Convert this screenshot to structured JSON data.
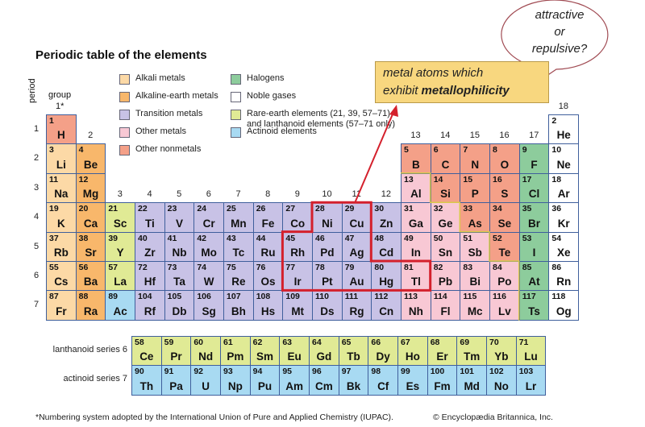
{
  "title": "Periodic table of the elements",
  "axis_labels": {
    "period": "period",
    "group": "group",
    "group1": "1*"
  },
  "colors": {
    "alkali": "#fcd9a6",
    "alkaline": "#f8b76b",
    "transition": "#c8c2e6",
    "other_metal": "#f8c8d4",
    "nonmetal": "#f4a088",
    "halogen": "#8dcc9c",
    "noble": "#ffffff",
    "rare_earth": "#e0ea95",
    "actinoid": "#a8daf2",
    "highlight": "#d4202c",
    "note_box": "#f8d77f"
  },
  "legend": [
    {
      "key": "alkali",
      "label": "Alkali metals"
    },
    {
      "key": "alkaline",
      "label": "Alkaline-earth metals"
    },
    {
      "key": "transition",
      "label": "Transition metals"
    },
    {
      "key": "other_metal",
      "label": "Other metals"
    },
    {
      "key": "nonmetal",
      "label": "Other nonmetals"
    },
    {
      "key": "halogen",
      "label": "Halogens"
    },
    {
      "key": "noble",
      "label": "Noble gases"
    },
    {
      "key": "rare_earth",
      "label": "Rare-earth elements (21, 39, 57–71)",
      "label2": "and lanthanoid elements (57–71 only)"
    },
    {
      "key": "actinoid",
      "label": "Actinoid elements"
    }
  ],
  "groups": [
    "2",
    "3",
    "4",
    "5",
    "6",
    "7",
    "8",
    "9",
    "10",
    "11",
    "12",
    "13",
    "14",
    "15",
    "16",
    "17",
    "18"
  ],
  "periods": [
    "1",
    "2",
    "3",
    "4",
    "5",
    "6",
    "7"
  ],
  "elements": [
    [
      1,
      "H",
      "nonmetal",
      1,
      1
    ],
    [
      2,
      "He",
      "noble",
      1,
      18
    ],
    [
      3,
      "Li",
      "alkali",
      2,
      1
    ],
    [
      4,
      "Be",
      "alkaline",
      2,
      2
    ],
    [
      5,
      "B",
      "nonmetal",
      2,
      13
    ],
    [
      6,
      "C",
      "nonmetal",
      2,
      14
    ],
    [
      7,
      "N",
      "nonmetal",
      2,
      15
    ],
    [
      8,
      "O",
      "nonmetal",
      2,
      16
    ],
    [
      9,
      "F",
      "halogen",
      2,
      17
    ],
    [
      10,
      "Ne",
      "noble",
      2,
      18
    ],
    [
      11,
      "Na",
      "alkali",
      3,
      1
    ],
    [
      12,
      "Mg",
      "alkaline",
      3,
      2
    ],
    [
      13,
      "Al",
      "other_metal",
      3,
      13
    ],
    [
      14,
      "Si",
      "nonmetal",
      3,
      14
    ],
    [
      15,
      "P",
      "nonmetal",
      3,
      15
    ],
    [
      16,
      "S",
      "nonmetal",
      3,
      16
    ],
    [
      17,
      "Cl",
      "halogen",
      3,
      17
    ],
    [
      18,
      "Ar",
      "noble",
      3,
      18
    ],
    [
      19,
      "K",
      "alkali",
      4,
      1
    ],
    [
      20,
      "Ca",
      "alkaline",
      4,
      2
    ],
    [
      21,
      "Sc",
      "rare_earth",
      4,
      3
    ],
    [
      22,
      "Ti",
      "transition",
      4,
      4
    ],
    [
      23,
      "V",
      "transition",
      4,
      5
    ],
    [
      24,
      "Cr",
      "transition",
      4,
      6
    ],
    [
      25,
      "Mn",
      "transition",
      4,
      7
    ],
    [
      26,
      "Fe",
      "transition",
      4,
      8
    ],
    [
      27,
      "Co",
      "transition",
      4,
      9
    ],
    [
      28,
      "Ni",
      "transition",
      4,
      10
    ],
    [
      29,
      "Cu",
      "transition",
      4,
      11
    ],
    [
      30,
      "Zn",
      "transition",
      4,
      12
    ],
    [
      31,
      "Ga",
      "other_metal",
      4,
      13
    ],
    [
      32,
      "Ge",
      "other_metal",
      4,
      14
    ],
    [
      33,
      "As",
      "nonmetal",
      4,
      15
    ],
    [
      34,
      "Se",
      "nonmetal",
      4,
      16
    ],
    [
      35,
      "Br",
      "halogen",
      4,
      17
    ],
    [
      36,
      "Kr",
      "noble",
      4,
      18
    ],
    [
      37,
      "Rb",
      "alkali",
      5,
      1
    ],
    [
      38,
      "Sr",
      "alkaline",
      5,
      2
    ],
    [
      39,
      "Y",
      "rare_earth",
      5,
      3
    ],
    [
      40,
      "Zr",
      "transition",
      5,
      4
    ],
    [
      41,
      "Nb",
      "transition",
      5,
      5
    ],
    [
      42,
      "Mo",
      "transition",
      5,
      6
    ],
    [
      43,
      "Tc",
      "transition",
      5,
      7
    ],
    [
      44,
      "Ru",
      "transition",
      5,
      8
    ],
    [
      45,
      "Rh",
      "transition",
      5,
      9
    ],
    [
      46,
      "Pd",
      "transition",
      5,
      10
    ],
    [
      47,
      "Ag",
      "transition",
      5,
      11
    ],
    [
      48,
      "Cd",
      "transition",
      5,
      12
    ],
    [
      49,
      "In",
      "other_metal",
      5,
      13
    ],
    [
      50,
      "Sn",
      "other_metal",
      5,
      14
    ],
    [
      51,
      "Sb",
      "other_metal",
      5,
      15
    ],
    [
      52,
      "Te",
      "nonmetal",
      5,
      16
    ],
    [
      53,
      "I",
      "halogen",
      5,
      17
    ],
    [
      54,
      "Xe",
      "noble",
      5,
      18
    ],
    [
      55,
      "Cs",
      "alkali",
      6,
      1
    ],
    [
      56,
      "Ba",
      "alkaline",
      6,
      2
    ],
    [
      57,
      "La",
      "rare_earth",
      6,
      3
    ],
    [
      72,
      "Hf",
      "transition",
      6,
      4
    ],
    [
      73,
      "Ta",
      "transition",
      6,
      5
    ],
    [
      74,
      "W",
      "transition",
      6,
      6
    ],
    [
      75,
      "Re",
      "transition",
      6,
      7
    ],
    [
      76,
      "Os",
      "transition",
      6,
      8
    ],
    [
      77,
      "Ir",
      "transition",
      6,
      9
    ],
    [
      78,
      "Pt",
      "transition",
      6,
      10
    ],
    [
      79,
      "Au",
      "transition",
      6,
      11
    ],
    [
      80,
      "Hg",
      "transition",
      6,
      12
    ],
    [
      81,
      "Tl",
      "other_metal",
      6,
      13
    ],
    [
      82,
      "Pb",
      "other_metal",
      6,
      14
    ],
    [
      83,
      "Bi",
      "other_metal",
      6,
      15
    ],
    [
      84,
      "Po",
      "other_metal",
      6,
      16
    ],
    [
      85,
      "At",
      "halogen",
      6,
      17
    ],
    [
      86,
      "Rn",
      "noble",
      6,
      18
    ],
    [
      87,
      "Fr",
      "alkali",
      7,
      1
    ],
    [
      88,
      "Ra",
      "alkaline",
      7,
      2
    ],
    [
      89,
      "Ac",
      "actinoid",
      7,
      3
    ],
    [
      104,
      "Rf",
      "transition",
      7,
      4
    ],
    [
      105,
      "Db",
      "transition",
      7,
      5
    ],
    [
      106,
      "Sg",
      "transition",
      7,
      6
    ],
    [
      107,
      "Bh",
      "transition",
      7,
      7
    ],
    [
      108,
      "Hs",
      "transition",
      7,
      8
    ],
    [
      109,
      "Mt",
      "transition",
      7,
      9
    ],
    [
      110,
      "Ds",
      "transition",
      7,
      10
    ],
    [
      111,
      "Rg",
      "transition",
      7,
      11
    ],
    [
      112,
      "Cn",
      "transition",
      7,
      12
    ],
    [
      113,
      "Nh",
      "other_metal",
      7,
      13
    ],
    [
      114,
      "Fl",
      "other_metal",
      7,
      14
    ],
    [
      115,
      "Mc",
      "other_metal",
      7,
      15
    ],
    [
      116,
      "Lv",
      "other_metal",
      7,
      16
    ],
    [
      117,
      "Ts",
      "halogen",
      7,
      17
    ],
    [
      118,
      "Og",
      "noble",
      7,
      18
    ]
  ],
  "lanthanoids": {
    "label": "lanthanoid series  6",
    "category": "rare_earth",
    "elements": [
      [
        58,
        "Ce"
      ],
      [
        59,
        "Pr"
      ],
      [
        60,
        "Nd"
      ],
      [
        61,
        "Pm"
      ],
      [
        62,
        "Sm"
      ],
      [
        63,
        "Eu"
      ],
      [
        64,
        "Gd"
      ],
      [
        65,
        "Tb"
      ],
      [
        66,
        "Dy"
      ],
      [
        67,
        "Ho"
      ],
      [
        68,
        "Er"
      ],
      [
        69,
        "Tm"
      ],
      [
        70,
        "Yb"
      ],
      [
        71,
        "Lu"
      ]
    ]
  },
  "actinoids": {
    "label": "actinoid series  7",
    "category": "actinoid",
    "elements": [
      [
        90,
        "Th"
      ],
      [
        91,
        "Pa"
      ],
      [
        92,
        "U"
      ],
      [
        93,
        "Np"
      ],
      [
        94,
        "Pu"
      ],
      [
        95,
        "Am"
      ],
      [
        96,
        "Cm"
      ],
      [
        97,
        "Bk"
      ],
      [
        98,
        "Cf"
      ],
      [
        99,
        "Es"
      ],
      [
        100,
        "Fm"
      ],
      [
        101,
        "Md"
      ],
      [
        102,
        "No"
      ],
      [
        103,
        "Lr"
      ]
    ]
  },
  "highlighted_elements": [
    "Ni",
    "Cu",
    "Rh",
    "Pd",
    "Ag",
    "Ir",
    "Pt",
    "Au",
    "Hg",
    "Tl"
  ],
  "annotation": {
    "line1": "metal atoms which",
    "line2_prefix": "exhibit ",
    "line2_bold": "metallophilicity"
  },
  "bubble": {
    "line1": "attractive",
    "line2": "or",
    "line3": "repulsive?"
  },
  "footnote": "*Numbering system adopted by the International Union of Pure and Applied Chemistry (IUPAC).",
  "copyright": "© Encyclopædia Britannica, Inc."
}
